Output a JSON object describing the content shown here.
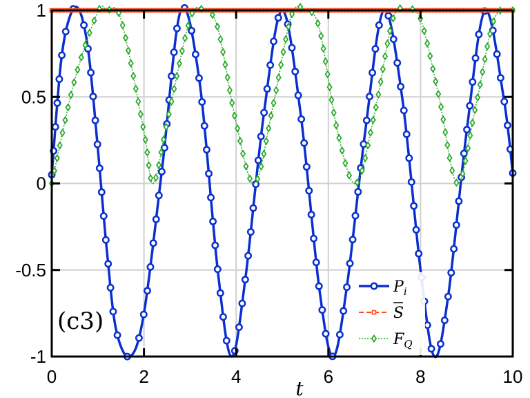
{
  "chart_data": {
    "type": "line",
    "xlabel": "t",
    "xlim": [
      0,
      10
    ],
    "ylim": [
      -1,
      1
    ],
    "xticks": [
      "0",
      "2",
      "4",
      "6",
      "8",
      "10"
    ],
    "yticks": [
      "1",
      "0.5",
      "0",
      "-0.5",
      "-1"
    ],
    "grid": true,
    "legend_position": "bottom-right",
    "annotation": "(c3)",
    "series": [
      {
        "name": "Pi",
        "color": "#0a2fd0",
        "style": "solid-circle",
        "x": [
          0,
          0.2,
          0.4,
          0.6,
          0.8,
          1.0,
          1.2,
          1.4,
          1.7,
          2.0,
          2.4,
          2.8,
          3.2,
          3.6,
          3.9,
          4.2,
          4.6,
          5.0,
          5.4,
          5.8,
          6.1,
          6.4,
          6.8,
          7.2,
          7.6,
          8.0,
          8.3,
          8.6,
          9.0,
          9.4,
          9.8,
          10.0
        ],
        "values": [
          0.05,
          0.7,
          0.97,
          1.0,
          0.75,
          0.2,
          -0.4,
          -0.85,
          -1.0,
          -0.75,
          0.1,
          1.0,
          0.6,
          -0.5,
          -1.0,
          -0.55,
          0.4,
          1.0,
          0.4,
          -0.6,
          -1.0,
          -0.6,
          0.3,
          1.0,
          0.5,
          -0.5,
          -1.0,
          -0.65,
          0.3,
          1.0,
          0.5,
          0.06
        ]
      },
      {
        "name": "S",
        "color": "#ff4a1f",
        "style": "dashed-square",
        "x": [
          0,
          10
        ],
        "values": [
          1,
          1
        ]
      },
      {
        "name": "FQ",
        "color": "#2aaa2a",
        "style": "dotted-diamond",
        "x": [
          0,
          0.5,
          1.0,
          1.2,
          1.5,
          2.0,
          2.2,
          2.5,
          3.0,
          3.3,
          3.6,
          4.0,
          4.4,
          4.8,
          5.2,
          5.5,
          5.8,
          6.2,
          6.6,
          7.0,
          7.4,
          7.7,
          8.0,
          8.4,
          8.8,
          9.2,
          9.6,
          10.0
        ],
        "values": [
          0.0,
          0.6,
          0.99,
          1.0,
          0.95,
          0.3,
          0.0,
          0.35,
          0.95,
          1.0,
          0.9,
          0.35,
          0.0,
          0.45,
          0.97,
          1.0,
          0.9,
          0.3,
          0.0,
          0.4,
          0.95,
          1.0,
          0.95,
          0.5,
          0.0,
          0.45,
          0.95,
          1.0
        ]
      }
    ]
  }
}
